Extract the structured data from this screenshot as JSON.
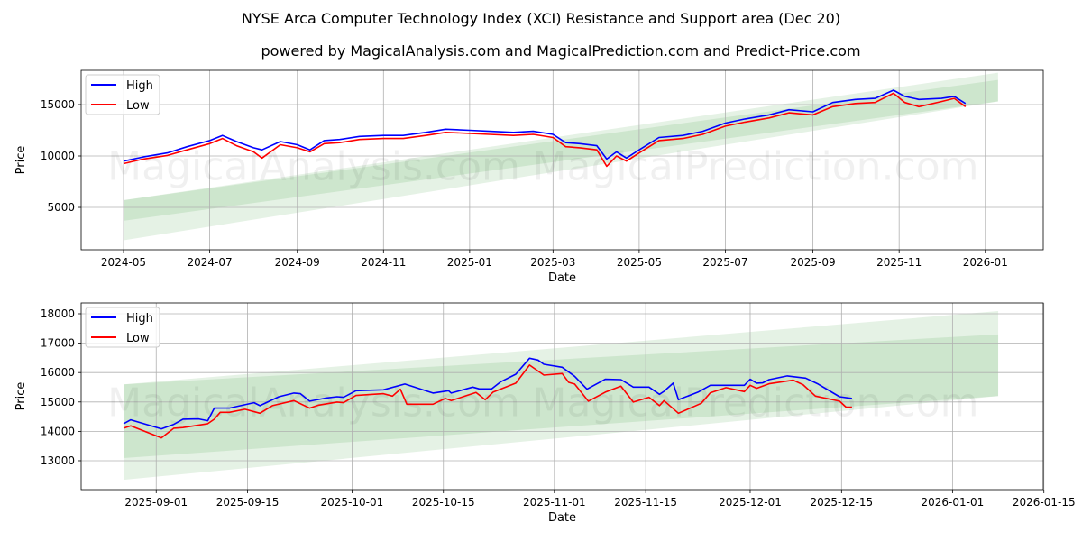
{
  "title": "NYSE Arca Computer Technology Index (XCI) Resistance and Support area (Dec 20)",
  "subtitle": "powered by MagicalAnalysis.com and MagicalPrediction.com and Predict-Price.com",
  "watermarks": [
    "MagicalAnalysis.com",
    "MagicalPrediction.com"
  ],
  "colors": {
    "high": "#0000ff",
    "low": "#ff0000",
    "band": "#008000"
  },
  "chart_data": [
    {
      "type": "line",
      "x_unit": "days since 2024-05-01",
      "xlabel": "Date",
      "ylabel": "Price",
      "xlim": [
        -30,
        651
      ],
      "ylim": [
        880,
        18330
      ],
      "grid": true,
      "legend": {
        "placement": "top-left",
        "entries": [
          "High",
          "Low"
        ]
      },
      "x_ticks": [
        {
          "v": 0,
          "label": "2024-05"
        },
        {
          "v": 61,
          "label": "2024-07"
        },
        {
          "v": 123,
          "label": "2024-09"
        },
        {
          "v": 184,
          "label": "2024-11"
        },
        {
          "v": 245,
          "label": "2025-01"
        },
        {
          "v": 304,
          "label": "2025-03"
        },
        {
          "v": 365,
          "label": "2025-05"
        },
        {
          "v": 426,
          "label": "2025-07"
        },
        {
          "v": 488,
          "label": "2025-09"
        },
        {
          "v": 549,
          "label": "2025-11"
        },
        {
          "v": 610,
          "label": "2026-01"
        }
      ],
      "y_ticks": [
        {
          "v": 5000,
          "label": "5000"
        },
        {
          "v": 10000,
          "label": "10000"
        },
        {
          "v": 15000,
          "label": "15000"
        }
      ],
      "bands": [
        {
          "x": [
            0,
            619
          ],
          "lower": [
            1800,
            15300
          ],
          "upper": [
            5700,
            18100
          ]
        },
        {
          "x": [
            0,
            619
          ],
          "lower": [
            3700,
            15300
          ],
          "upper": [
            5700,
            17400
          ]
        }
      ],
      "series": [
        {
          "name": "High",
          "points": [
            [
              0,
              9500
            ],
            [
              14,
              9900
            ],
            [
              31,
              10300
            ],
            [
              45,
              10900
            ],
            [
              61,
              11500
            ],
            [
              70,
              12000
            ],
            [
              80,
              11400
            ],
            [
              92,
              10800
            ],
            [
              98,
              10600
            ],
            [
              111,
              11400
            ],
            [
              123,
              11100
            ],
            [
              132,
              10600
            ],
            [
              142,
              11500
            ],
            [
              153,
              11600
            ],
            [
              167,
              11900
            ],
            [
              184,
              12000
            ],
            [
              198,
              12000
            ],
            [
              214,
              12300
            ],
            [
              228,
              12600
            ],
            [
              245,
              12500
            ],
            [
              259,
              12400
            ],
            [
              276,
              12300
            ],
            [
              290,
              12400
            ],
            [
              304,
              12100
            ],
            [
              313,
              11300
            ],
            [
              323,
              11200
            ],
            [
              335,
              11000
            ],
            [
              342,
              9700
            ],
            [
              349,
              10400
            ],
            [
              356,
              9800
            ],
            [
              365,
              10600
            ],
            [
              379,
              11800
            ],
            [
              396,
              12000
            ],
            [
              410,
              12400
            ],
            [
              426,
              13200
            ],
            [
              440,
              13600
            ],
            [
              457,
              14000
            ],
            [
              471,
              14500
            ],
            [
              488,
              14300
            ],
            [
              502,
              15200
            ],
            [
              518,
              15500
            ],
            [
              532,
              15600
            ],
            [
              545,
              16400
            ],
            [
              553,
              15800
            ],
            [
              563,
              15500
            ],
            [
              579,
              15600
            ],
            [
              588,
              15800
            ],
            [
              596,
              15100
            ]
          ]
        },
        {
          "name": "Low",
          "points": [
            [
              0,
              9250
            ],
            [
              14,
              9700
            ],
            [
              31,
              10050
            ],
            [
              45,
              10600
            ],
            [
              61,
              11200
            ],
            [
              70,
              11700
            ],
            [
              80,
              11000
            ],
            [
              92,
              10400
            ],
            [
              98,
              9800
            ],
            [
              111,
              11100
            ],
            [
              123,
              10800
            ],
            [
              132,
              10400
            ],
            [
              142,
              11200
            ],
            [
              153,
              11300
            ],
            [
              167,
              11600
            ],
            [
              184,
              11700
            ],
            [
              198,
              11700
            ],
            [
              214,
              12000
            ],
            [
              228,
              12300
            ],
            [
              245,
              12200
            ],
            [
              259,
              12100
            ],
            [
              276,
              12000
            ],
            [
              290,
              12100
            ],
            [
              304,
              11800
            ],
            [
              313,
              10900
            ],
            [
              323,
              10800
            ],
            [
              335,
              10600
            ],
            [
              342,
              9000
            ],
            [
              349,
              10000
            ],
            [
              356,
              9500
            ],
            [
              365,
              10300
            ],
            [
              379,
              11500
            ],
            [
              396,
              11700
            ],
            [
              410,
              12100
            ],
            [
              426,
              12900
            ],
            [
              440,
              13300
            ],
            [
              457,
              13700
            ],
            [
              471,
              14200
            ],
            [
              488,
              14000
            ],
            [
              502,
              14800
            ],
            [
              518,
              15100
            ],
            [
              532,
              15200
            ],
            [
              545,
              16100
            ],
            [
              553,
              15200
            ],
            [
              563,
              14800
            ],
            [
              579,
              15300
            ],
            [
              588,
              15600
            ],
            [
              596,
              14800
            ]
          ]
        }
      ]
    },
    {
      "type": "line",
      "x_unit": "days since 2025-09-01",
      "xlabel": "Date",
      "ylabel": "Price",
      "xlim": [
        -11.5,
        135.9
      ],
      "ylim": [
        12018,
        18368
      ],
      "grid": true,
      "legend": {
        "placement": "top-left",
        "entries": [
          "High",
          "Low"
        ]
      },
      "x_ticks": [
        {
          "v": 0,
          "label": "2025-09-01"
        },
        {
          "v": 14,
          "label": "2025-09-15"
        },
        {
          "v": 30,
          "label": "2025-10-01"
        },
        {
          "v": 44,
          "label": "2025-10-15"
        },
        {
          "v": 61,
          "label": "2025-11-01"
        },
        {
          "v": 75,
          "label": "2025-11-15"
        },
        {
          "v": 91,
          "label": "2025-12-01"
        },
        {
          "v": 105,
          "label": "2025-12-15"
        },
        {
          "v": 122,
          "label": "2026-01-01"
        },
        {
          "v": 136,
          "label": "2026-01-15"
        }
      ],
      "y_ticks": [
        {
          "v": 13000,
          "label": "13000"
        },
        {
          "v": 14000,
          "label": "14000"
        },
        {
          "v": 15000,
          "label": "15000"
        },
        {
          "v": 16000,
          "label": "16000"
        },
        {
          "v": 17000,
          "label": "17000"
        },
        {
          "v": 18000,
          "label": "18000"
        }
      ],
      "bands": [
        {
          "x": [
            -5,
            129
          ],
          "lower": [
            12350,
            15200
          ],
          "upper": [
            15600,
            18090
          ]
        },
        {
          "x": [
            -5,
            129
          ],
          "lower": [
            13090,
            15200
          ],
          "upper": [
            15600,
            17300
          ]
        }
      ],
      "series": [
        {
          "name": "High",
          "points": [
            [
              -5,
              14260
            ],
            [
              -3.9,
              14392
            ],
            [
              0.8,
              14086
            ],
            [
              2.7,
              14239
            ],
            [
              4.1,
              14413
            ],
            [
              6.5,
              14423
            ],
            [
              7.9,
              14362
            ],
            [
              8.9,
              14791
            ],
            [
              11.2,
              14791
            ],
            [
              15,
              14975
            ],
            [
              15.9,
              14873
            ],
            [
              18.8,
              15179
            ],
            [
              21.1,
              15302
            ],
            [
              22.1,
              15282
            ],
            [
              23.5,
              15026
            ],
            [
              25.9,
              15128
            ],
            [
              27.7,
              15179
            ],
            [
              28.7,
              15159
            ],
            [
              30.6,
              15384
            ],
            [
              34.8,
              15415
            ],
            [
              38.1,
              15609
            ],
            [
              42.4,
              15302
            ],
            [
              44.8,
              15384
            ],
            [
              45.2,
              15302
            ],
            [
              48.5,
              15506
            ],
            [
              49.5,
              15445
            ],
            [
              51.4,
              15445
            ],
            [
              52.8,
              15690
            ],
            [
              55.1,
              15946
            ],
            [
              57.2,
              16488
            ],
            [
              58.5,
              16426
            ],
            [
              59.4,
              16283
            ],
            [
              62.2,
              16181
            ],
            [
              64.1,
              15874
            ],
            [
              66,
              15435
            ],
            [
              68.8,
              15772
            ],
            [
              71.2,
              15762
            ],
            [
              73.1,
              15506
            ],
            [
              75.5,
              15506
            ],
            [
              77.1,
              15261
            ],
            [
              77.8,
              15363
            ],
            [
              79.2,
              15640
            ],
            [
              80,
              15077
            ],
            [
              83,
              15333
            ],
            [
              84.9,
              15568
            ],
            [
              90.1,
              15568
            ],
            [
              91,
              15772
            ],
            [
              92,
              15640
            ],
            [
              92.9,
              15650
            ],
            [
              93.9,
              15762
            ],
            [
              96.7,
              15885
            ],
            [
              99.5,
              15813
            ],
            [
              101.4,
              15609
            ],
            [
              104.7,
              15179
            ],
            [
              106.6,
              15118
            ]
          ]
        },
        {
          "name": "Low",
          "points": [
            [
              -5,
              14106
            ],
            [
              -3.9,
              14188
            ],
            [
              0.8,
              13779
            ],
            [
              2.7,
              14106
            ],
            [
              4.1,
              14127
            ],
            [
              7.9,
              14260
            ],
            [
              8.9,
              14413
            ],
            [
              9.8,
              14648
            ],
            [
              11.2,
              14648
            ],
            [
              13.6,
              14750
            ],
            [
              15.9,
              14617
            ],
            [
              17.8,
              14873
            ],
            [
              21.1,
              15047
            ],
            [
              23.5,
              14791
            ],
            [
              24.9,
              14893
            ],
            [
              27.7,
              14996
            ],
            [
              28.7,
              14975
            ],
            [
              30.6,
              15220
            ],
            [
              34.8,
              15282
            ],
            [
              36.2,
              15200
            ],
            [
              37.4,
              15435
            ],
            [
              38.4,
              14924
            ],
            [
              42.4,
              14924
            ],
            [
              44.3,
              15118
            ],
            [
              45.2,
              15047
            ],
            [
              49,
              15322
            ],
            [
              50.4,
              15077
            ],
            [
              51.6,
              15333
            ],
            [
              55.1,
              15640
            ],
            [
              57.2,
              16253
            ],
            [
              59.4,
              15915
            ],
            [
              62.2,
              15966
            ],
            [
              63.2,
              15670
            ],
            [
              64.1,
              15609
            ],
            [
              66.2,
              15026
            ],
            [
              68.8,
              15333
            ],
            [
              71.2,
              15537
            ],
            [
              73.1,
              14996
            ],
            [
              75.5,
              15159
            ],
            [
              77.1,
              14873
            ],
            [
              77.8,
              15047
            ],
            [
              80,
              14617
            ],
            [
              83.5,
              14955
            ],
            [
              84.9,
              15312
            ],
            [
              87.3,
              15486
            ],
            [
              90.1,
              15353
            ],
            [
              91,
              15568
            ],
            [
              92,
              15465
            ],
            [
              93.9,
              15619
            ],
            [
              97.6,
              15742
            ],
            [
              99.1,
              15589
            ],
            [
              101,
              15200
            ],
            [
              104.7,
              15026
            ],
            [
              105.7,
              14822
            ],
            [
              106.6,
              14822
            ]
          ]
        }
      ]
    }
  ]
}
